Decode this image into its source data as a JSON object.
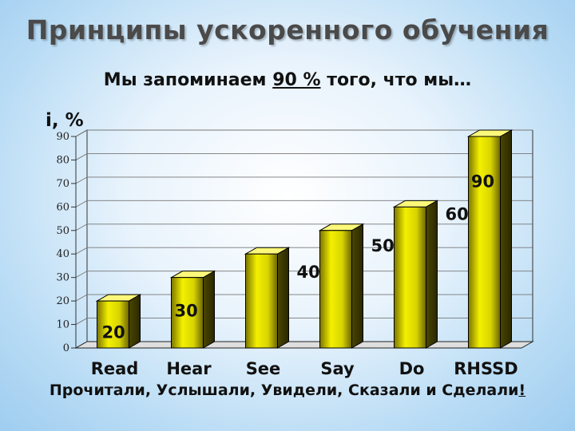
{
  "slide": {
    "title": "Принципы ускоренного обучения",
    "subtitle_before": "Мы запоминаем ",
    "subtitle_highlight": "90 %",
    "subtitle_after": " того, что мы…",
    "footer_text": "Прочитали, Услышали, Увидели, Сказали и Сделали",
    "footer_mark": "!"
  },
  "chart_data": {
    "type": "bar",
    "title": "",
    "ylabel": "i, %",
    "xlabel": "",
    "categories": [
      "Read",
      "Hear",
      "See",
      "Say",
      "Do",
      "RHSSD"
    ],
    "values": [
      20,
      30,
      40,
      50,
      60,
      90
    ],
    "data_labels": [
      "20",
      "30",
      "40",
      "50",
      "60",
      "90"
    ],
    "ylim": [
      0,
      90
    ],
    "yticks": [
      0,
      10,
      20,
      30,
      40,
      50,
      60,
      70,
      80,
      90
    ],
    "grid": true,
    "style": "3d",
    "bar_color": "#f2f000",
    "bar_edge_color": "#000000"
  }
}
